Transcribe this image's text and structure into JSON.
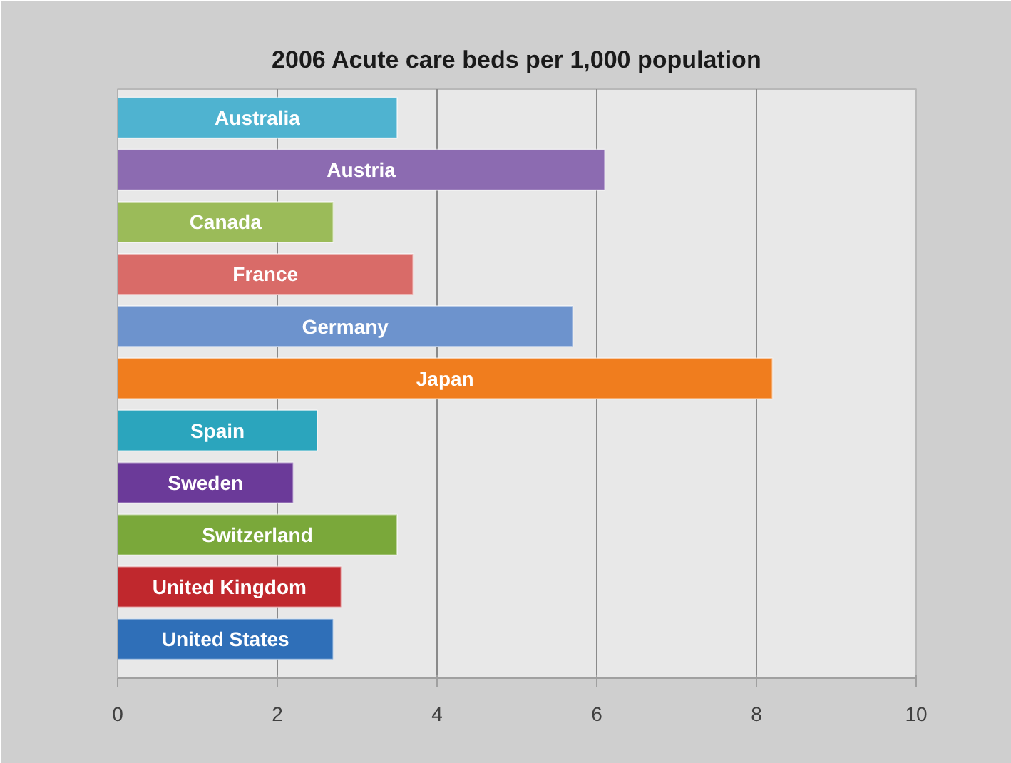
{
  "chart_data": {
    "type": "bar",
    "orientation": "horizontal",
    "title": "2006 Acute care beds per 1,000 population",
    "categories": [
      "Australia",
      "Austria",
      "Canada",
      "France",
      "Germany",
      "Japan",
      "Spain",
      "Sweden",
      "Switzerland",
      "United Kingdom",
      "United States"
    ],
    "values": [
      3.5,
      6.1,
      2.7,
      3.7,
      5.7,
      8.2,
      2.5,
      2.2,
      3.5,
      2.8,
      2.7
    ],
    "colors": [
      "#4fb3d0",
      "#8c6bb1",
      "#9bbb59",
      "#d96b68",
      "#6d93cd",
      "#f07d1e",
      "#2ba5bd",
      "#6b3a99",
      "#7aa83a",
      "#c0282d",
      "#2f6fb8"
    ],
    "xlim": [
      0,
      10
    ],
    "xticks": [
      0,
      2,
      4,
      6,
      8,
      10
    ],
    "grid": "x",
    "tick_labels": "x"
  }
}
